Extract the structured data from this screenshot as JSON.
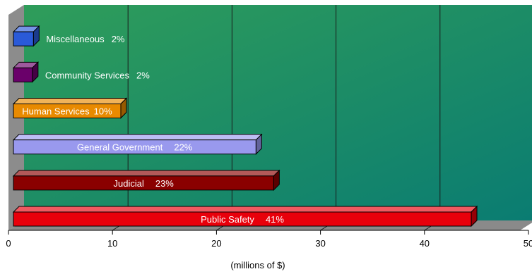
{
  "chart_data": {
    "type": "bar",
    "orientation": "horizontal",
    "style": "3d",
    "xlabel": "(millions of $)",
    "xlim": [
      0,
      50
    ],
    "xticks": [
      0,
      10,
      20,
      30,
      40,
      50
    ],
    "grid": "vertical lines",
    "background": "green to teal gradient",
    "categories": [
      "Public Safety",
      "Judicial",
      "General Government",
      "Human Services",
      "Community Services",
      "Miscellaneous"
    ],
    "values": [
      44.5,
      25.5,
      23.8,
      10.8,
      2.3,
      2.4
    ],
    "percent_labels": [
      "41%",
      "23%",
      "22%",
      "10%",
      "2%",
      "2%"
    ],
    "colors": [
      "#e8000b",
      "#8a0000",
      "#9999ee",
      "#e88a00",
      "#6a006a",
      "#2a5ad8"
    ]
  }
}
